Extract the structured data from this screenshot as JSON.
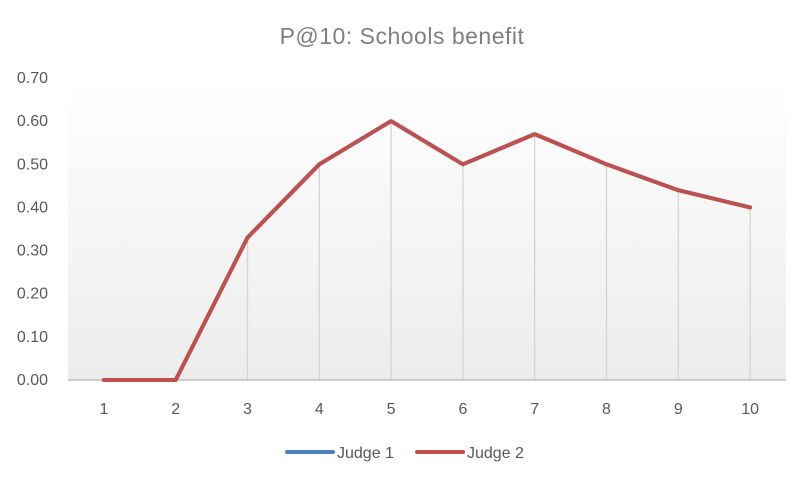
{
  "chart_data": {
    "type": "line",
    "title": "P@10: Schools benefit",
    "xlabel": "",
    "ylabel": "",
    "categories": [
      "1",
      "2",
      "3",
      "4",
      "5",
      "6",
      "7",
      "8",
      "9",
      "10"
    ],
    "ylim": [
      0,
      0.7
    ],
    "yticks": [
      "0.00",
      "0.10",
      "0.20",
      "0.30",
      "0.40",
      "0.50",
      "0.60",
      "0.70"
    ],
    "ytick_values": [
      0,
      0.1,
      0.2,
      0.3,
      0.4,
      0.5,
      0.6,
      0.7
    ],
    "grid": "vertical",
    "legend_position": "bottom",
    "series": [
      {
        "name": "Judge 1",
        "color": "#4F81BD",
        "values": [
          0,
          0,
          0.33,
          0.5,
          0.6,
          0.5,
          0.57,
          0.5,
          0.44,
          0.4
        ]
      },
      {
        "name": "Judge 2",
        "color": "#C0504D",
        "values": [
          0,
          0,
          0.33,
          0.5,
          0.6,
          0.5,
          0.57,
          0.5,
          0.44,
          0.4
        ]
      }
    ]
  }
}
